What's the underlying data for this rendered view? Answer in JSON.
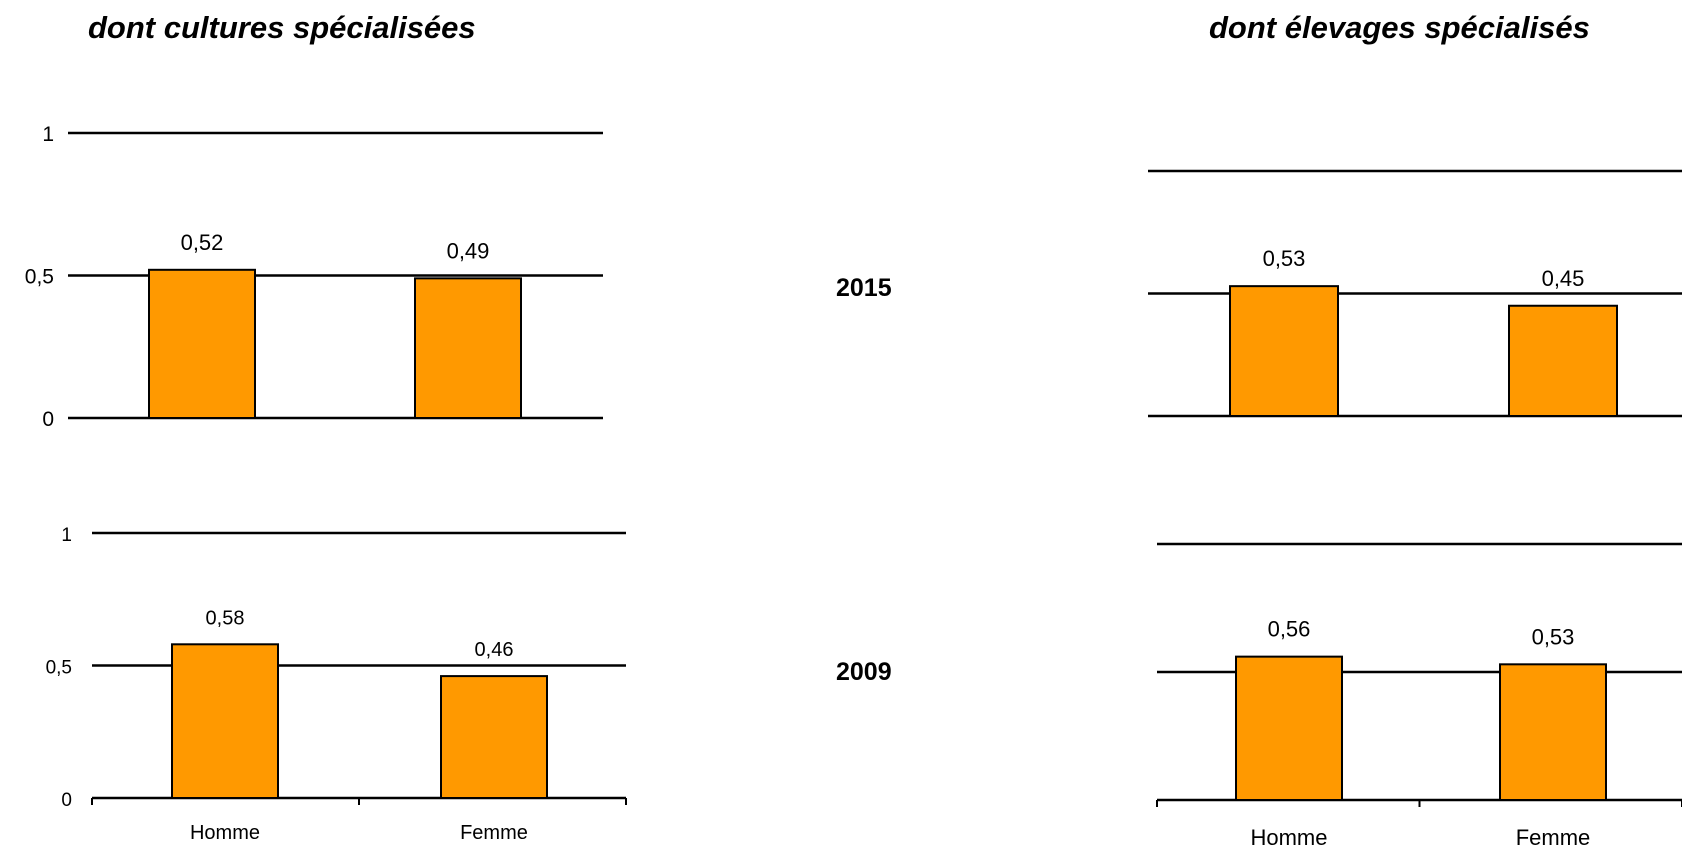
{
  "titles": {
    "left": "dont cultures spécialisées",
    "right": "dont élevages spécialisés"
  },
  "years": {
    "top": "2015",
    "bottom": "2009"
  },
  "chart_data": [
    {
      "type": "bar",
      "panel": "cultures spécialisées 2015",
      "categories": [
        "Homme",
        "Femme"
      ],
      "values": [
        0.52,
        0.49
      ],
      "value_labels": [
        "0,52",
        "0,49"
      ],
      "ytick_labels": [
        "0",
        "0,5",
        "1"
      ],
      "ylim": [
        0,
        1
      ],
      "grid": true,
      "show_x_axis": false,
      "bar_color": "#ff9900"
    },
    {
      "type": "bar",
      "panel": "cultures spécialisées 2009",
      "categories": [
        "Homme",
        "Femme"
      ],
      "values": [
        0.58,
        0.46
      ],
      "value_labels": [
        "0,58",
        "0,46"
      ],
      "ytick_labels": [
        "0",
        "0,5",
        "1"
      ],
      "ylim": [
        0,
        1
      ],
      "grid": true,
      "show_x_axis": true,
      "bar_color": "#ff9900"
    },
    {
      "type": "bar",
      "panel": "élevages spécialisés 2015",
      "categories": [
        "Homme",
        "Femme"
      ],
      "values": [
        0.53,
        0.45
      ],
      "value_labels": [
        "0,53",
        "0,45"
      ],
      "ytick_labels": [],
      "ylim": [
        0,
        1
      ],
      "grid": true,
      "show_x_axis": false,
      "bar_color": "#ff9900"
    },
    {
      "type": "bar",
      "panel": "élevages spécialisés 2009",
      "categories": [
        "Homme",
        "Femme"
      ],
      "values": [
        0.56,
        0.53
      ],
      "value_labels": [
        "0,56",
        "0,53"
      ],
      "ytick_labels": [],
      "ylim": [
        0,
        1
      ],
      "grid": true,
      "show_x_axis": true,
      "bar_color": "#ff9900"
    }
  ]
}
